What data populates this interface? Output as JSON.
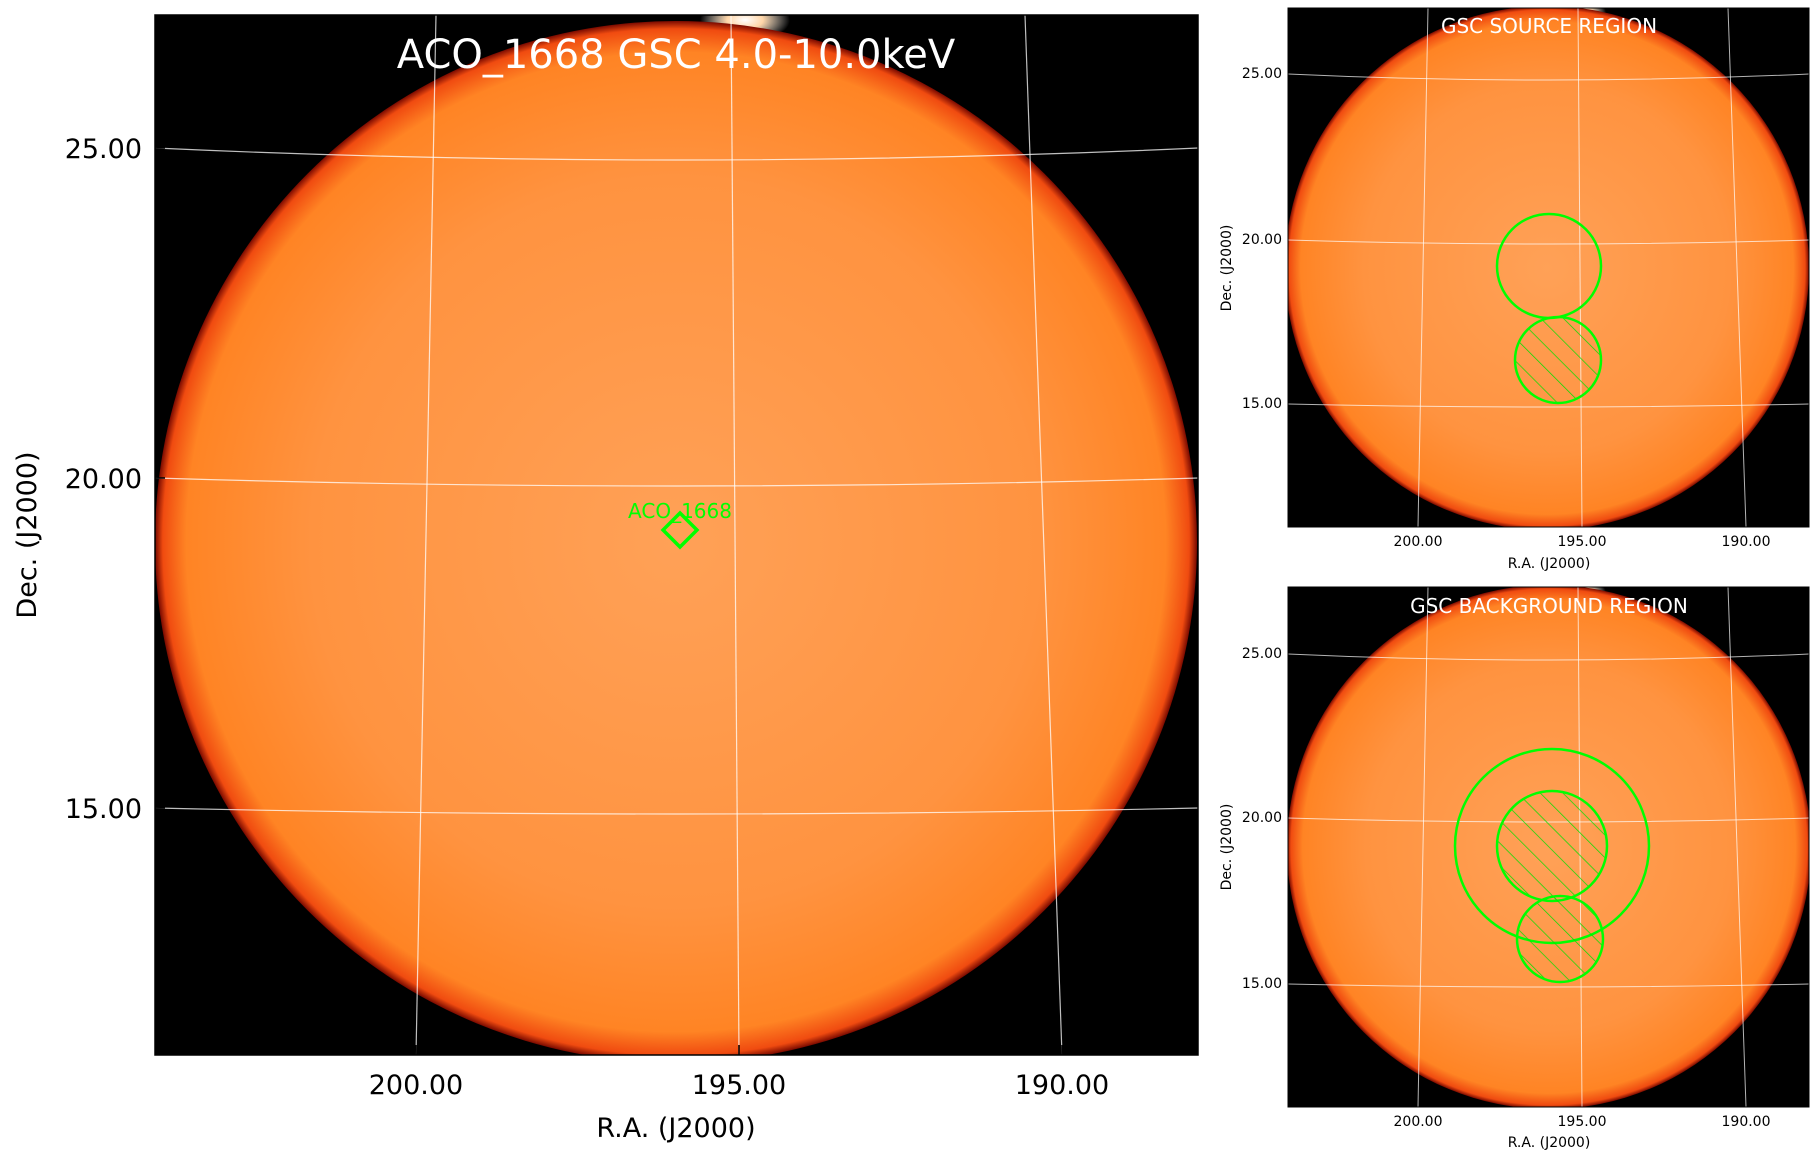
{
  "main": {
    "title": "ACO_1668 GSC 4.0-10.0keV",
    "xlabel": "R.A. (J2000)",
    "ylabel": "Dec. (J2000)",
    "xticks": [
      "200.00",
      "195.00",
      "190.00"
    ],
    "yticks": [
      "25.00",
      "20.00",
      "15.00"
    ],
    "marker_label": "ACO_1668",
    "marker_color": "#00ff00"
  },
  "top_panel": {
    "title": "GSC SOURCE REGION",
    "xlabel": "R.A. (J2000)",
    "ylabel": "Dec. (J2000)",
    "xticks": [
      "200.00",
      "195.00",
      "190.00"
    ],
    "yticks": [
      "25.00",
      "20.00",
      "15.00"
    ]
  },
  "bottom_panel": {
    "title": "GSC BACKGROUND REGION",
    "xlabel": "R.A. (J2000)",
    "ylabel": "Dec. (J2000)",
    "xticks": [
      "200.00",
      "195.00",
      "190.00"
    ],
    "yticks": [
      "25.00",
      "20.00",
      "15.00"
    ]
  },
  "colors": {
    "disk": "#ff8a28",
    "disk_center": "#ffa050",
    "background": "#000000",
    "region": "#00ff00",
    "grid": "#ffffff"
  }
}
